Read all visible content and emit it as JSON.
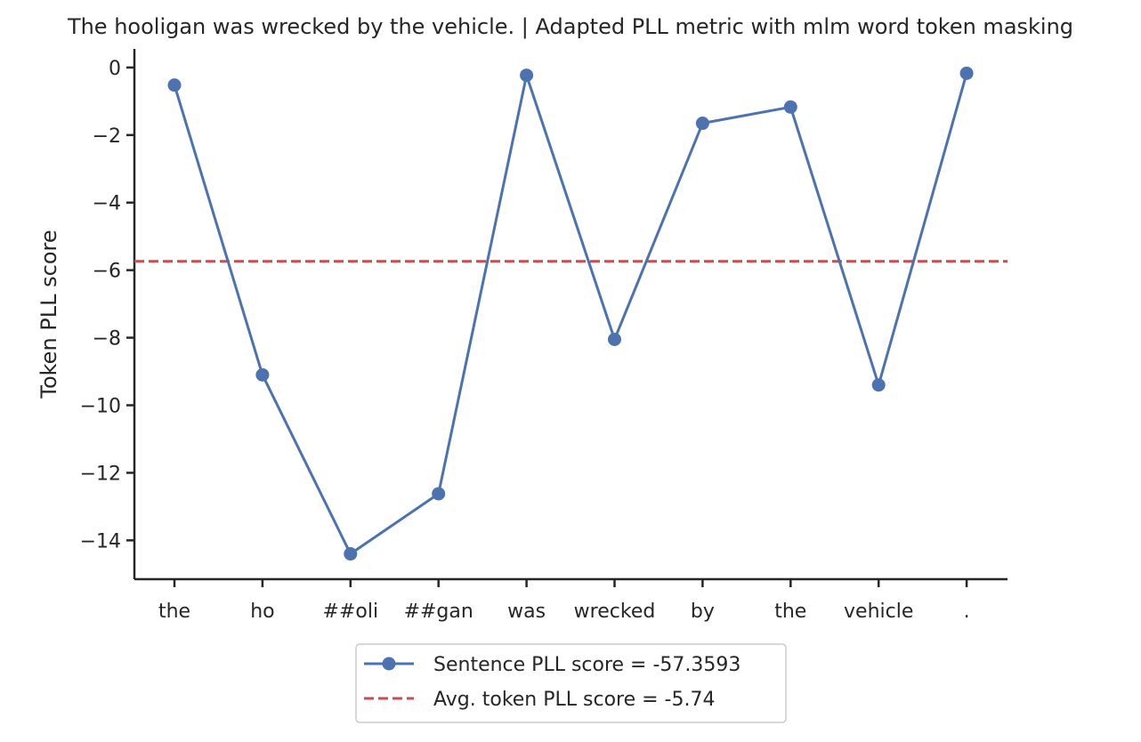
{
  "chart_data": {
    "type": "line",
    "title": "The hooligan was wrecked by the vehicle. | Adapted PLL metric with mlm word token masking",
    "xlabel": "",
    "ylabel": "Token PLL score",
    "categories": [
      "the",
      "ho",
      "##oli",
      "##gan",
      "was",
      "wrecked",
      "by",
      "the",
      "vehicle",
      "."
    ],
    "series": [
      {
        "name": "Sentence PLL score = -57.3593",
        "values": [
          -0.52,
          -9.1,
          -14.4,
          -12.62,
          -0.23,
          -8.05,
          -1.65,
          -1.17,
          -9.4,
          -0.17
        ],
        "color": "#4c72b0",
        "style": "solid",
        "marker": "circle"
      }
    ],
    "reference_lines": [
      {
        "name": "Avg. token PLL score = -5.74",
        "y": -5.74,
        "color": "#c44e52",
        "style": "dashed"
      }
    ],
    "yticks": [
      0,
      -2,
      -4,
      -6,
      -8,
      -10,
      -12,
      -14
    ],
    "ytick_labels": [
      "0",
      "−2",
      "−4",
      "−6",
      "−8",
      "−10",
      "−12",
      "−14"
    ],
    "ylim": [
      -15.15,
      0.55
    ],
    "grid": false,
    "legend_position": "below plot, centered"
  }
}
